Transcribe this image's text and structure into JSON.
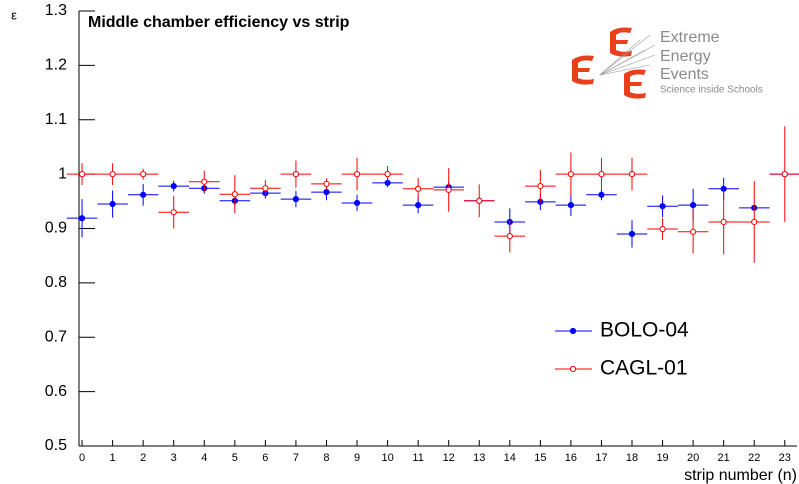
{
  "chart_data": {
    "type": "errorbar",
    "title": "Middle chamber efficiency vs strip",
    "x_label": "strip number (n)",
    "y_label": "ε",
    "x": [
      0,
      1,
      2,
      3,
      4,
      5,
      6,
      7,
      8,
      9,
      10,
      11,
      12,
      13,
      14,
      15,
      16,
      17,
      18,
      19,
      20,
      21,
      22,
      23
    ],
    "xlim": [
      -0.1,
      23.4
    ],
    "xticks": [
      0,
      1,
      2,
      3,
      4,
      5,
      6,
      7,
      8,
      9,
      10,
      11,
      12,
      13,
      14,
      15,
      16,
      17,
      18,
      19,
      20,
      21,
      22,
      23
    ],
    "ylim": [
      0.5,
      1.3
    ],
    "yticks": [
      0.5,
      0.6,
      0.7,
      0.8,
      0.9,
      1,
      1.1,
      1.2,
      1.3
    ],
    "legend": "right",
    "series": [
      {
        "name": "BOLO-04",
        "color": "#0000ff",
        "marker": "filled",
        "xerr": 0.5,
        "values": [
          0.919,
          0.945,
          0.962,
          0.978,
          0.974,
          0.951,
          0.965,
          0.954,
          0.967,
          0.947,
          0.984,
          0.943,
          0.976,
          0.951,
          0.912,
          0.949,
          0.943,
          0.962,
          0.89,
          0.941,
          0.943,
          0.973,
          0.938,
          1.0
        ],
        "errors": [
          0.035,
          0.025,
          0.02,
          0.01,
          0.01,
          0.01,
          0.01,
          0.015,
          0.015,
          0.015,
          0.008,
          0.015,
          0.01,
          0.005,
          0.025,
          0.015,
          0.02,
          0.01,
          0.025,
          0.02,
          0.03,
          0.02,
          0.005,
          0.005
        ]
      },
      {
        "name": "CAGL-01",
        "color": "#ff0000",
        "marker": "open",
        "xerr": 0.5,
        "values": [
          1.0,
          1.0,
          1.0,
          0.93,
          0.986,
          0.963,
          0.974,
          1.0,
          0.982,
          1.0,
          1.0,
          0.973,
          0.971,
          0.951,
          0.886,
          0.978,
          1.0,
          1.0,
          1.0,
          0.899,
          0.894,
          0.912,
          0.912,
          1.0
        ],
        "errors": [
          0.02,
          0.02,
          0.01,
          0.03,
          0.02,
          0.035,
          0.015,
          0.025,
          0.01,
          0.03,
          0.015,
          0.02,
          0.04,
          0.03,
          0.03,
          0.03,
          0.04,
          0.03,
          0.03,
          0.02,
          0.04,
          0.06,
          0.075,
          0.088
        ]
      }
    ]
  },
  "logo": {
    "lines": [
      "Extreme",
      "Energy",
      "Events"
    ],
    "tagline": "Science inside Schools"
  }
}
